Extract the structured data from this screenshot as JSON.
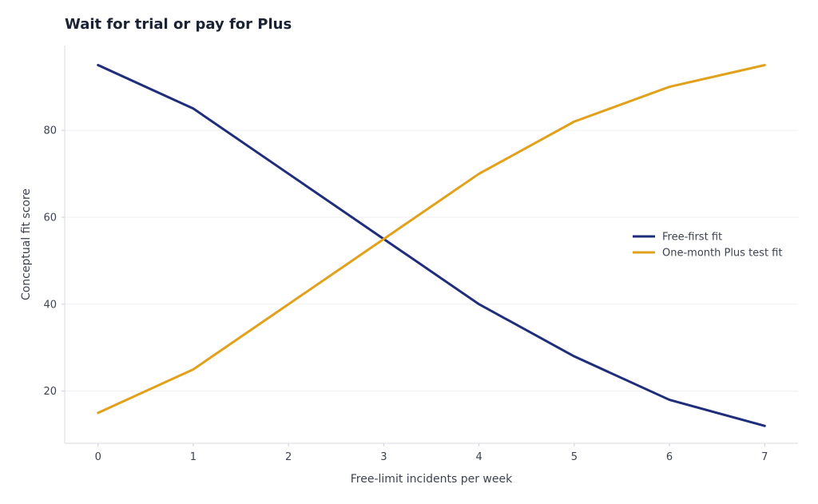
{
  "chart_data": {
    "type": "line",
    "title": "Wait for trial or pay for Plus",
    "xlabel": "Free-limit incidents per week",
    "ylabel": "Conceptual fit score",
    "x": [
      0,
      1,
      2,
      3,
      4,
      5,
      6,
      7
    ],
    "xlim": [
      -0.35,
      7.35
    ],
    "ylim": [
      8,
      99.5
    ],
    "xticks": [
      0,
      1,
      2,
      3,
      4,
      5,
      6,
      7
    ],
    "yticks": [
      20,
      40,
      60,
      80
    ],
    "grid": "horizontal",
    "legend_position": "center-right",
    "series": [
      {
        "name": "Free-first fit",
        "color": "#1f2d7a",
        "values": [
          95,
          85,
          70,
          55,
          40,
          28,
          18,
          12
        ]
      },
      {
        "name": "One-month Plus test fit",
        "color": "#e2a11b",
        "values": [
          15,
          25,
          40,
          55,
          70,
          82,
          90,
          95
        ]
      }
    ]
  }
}
